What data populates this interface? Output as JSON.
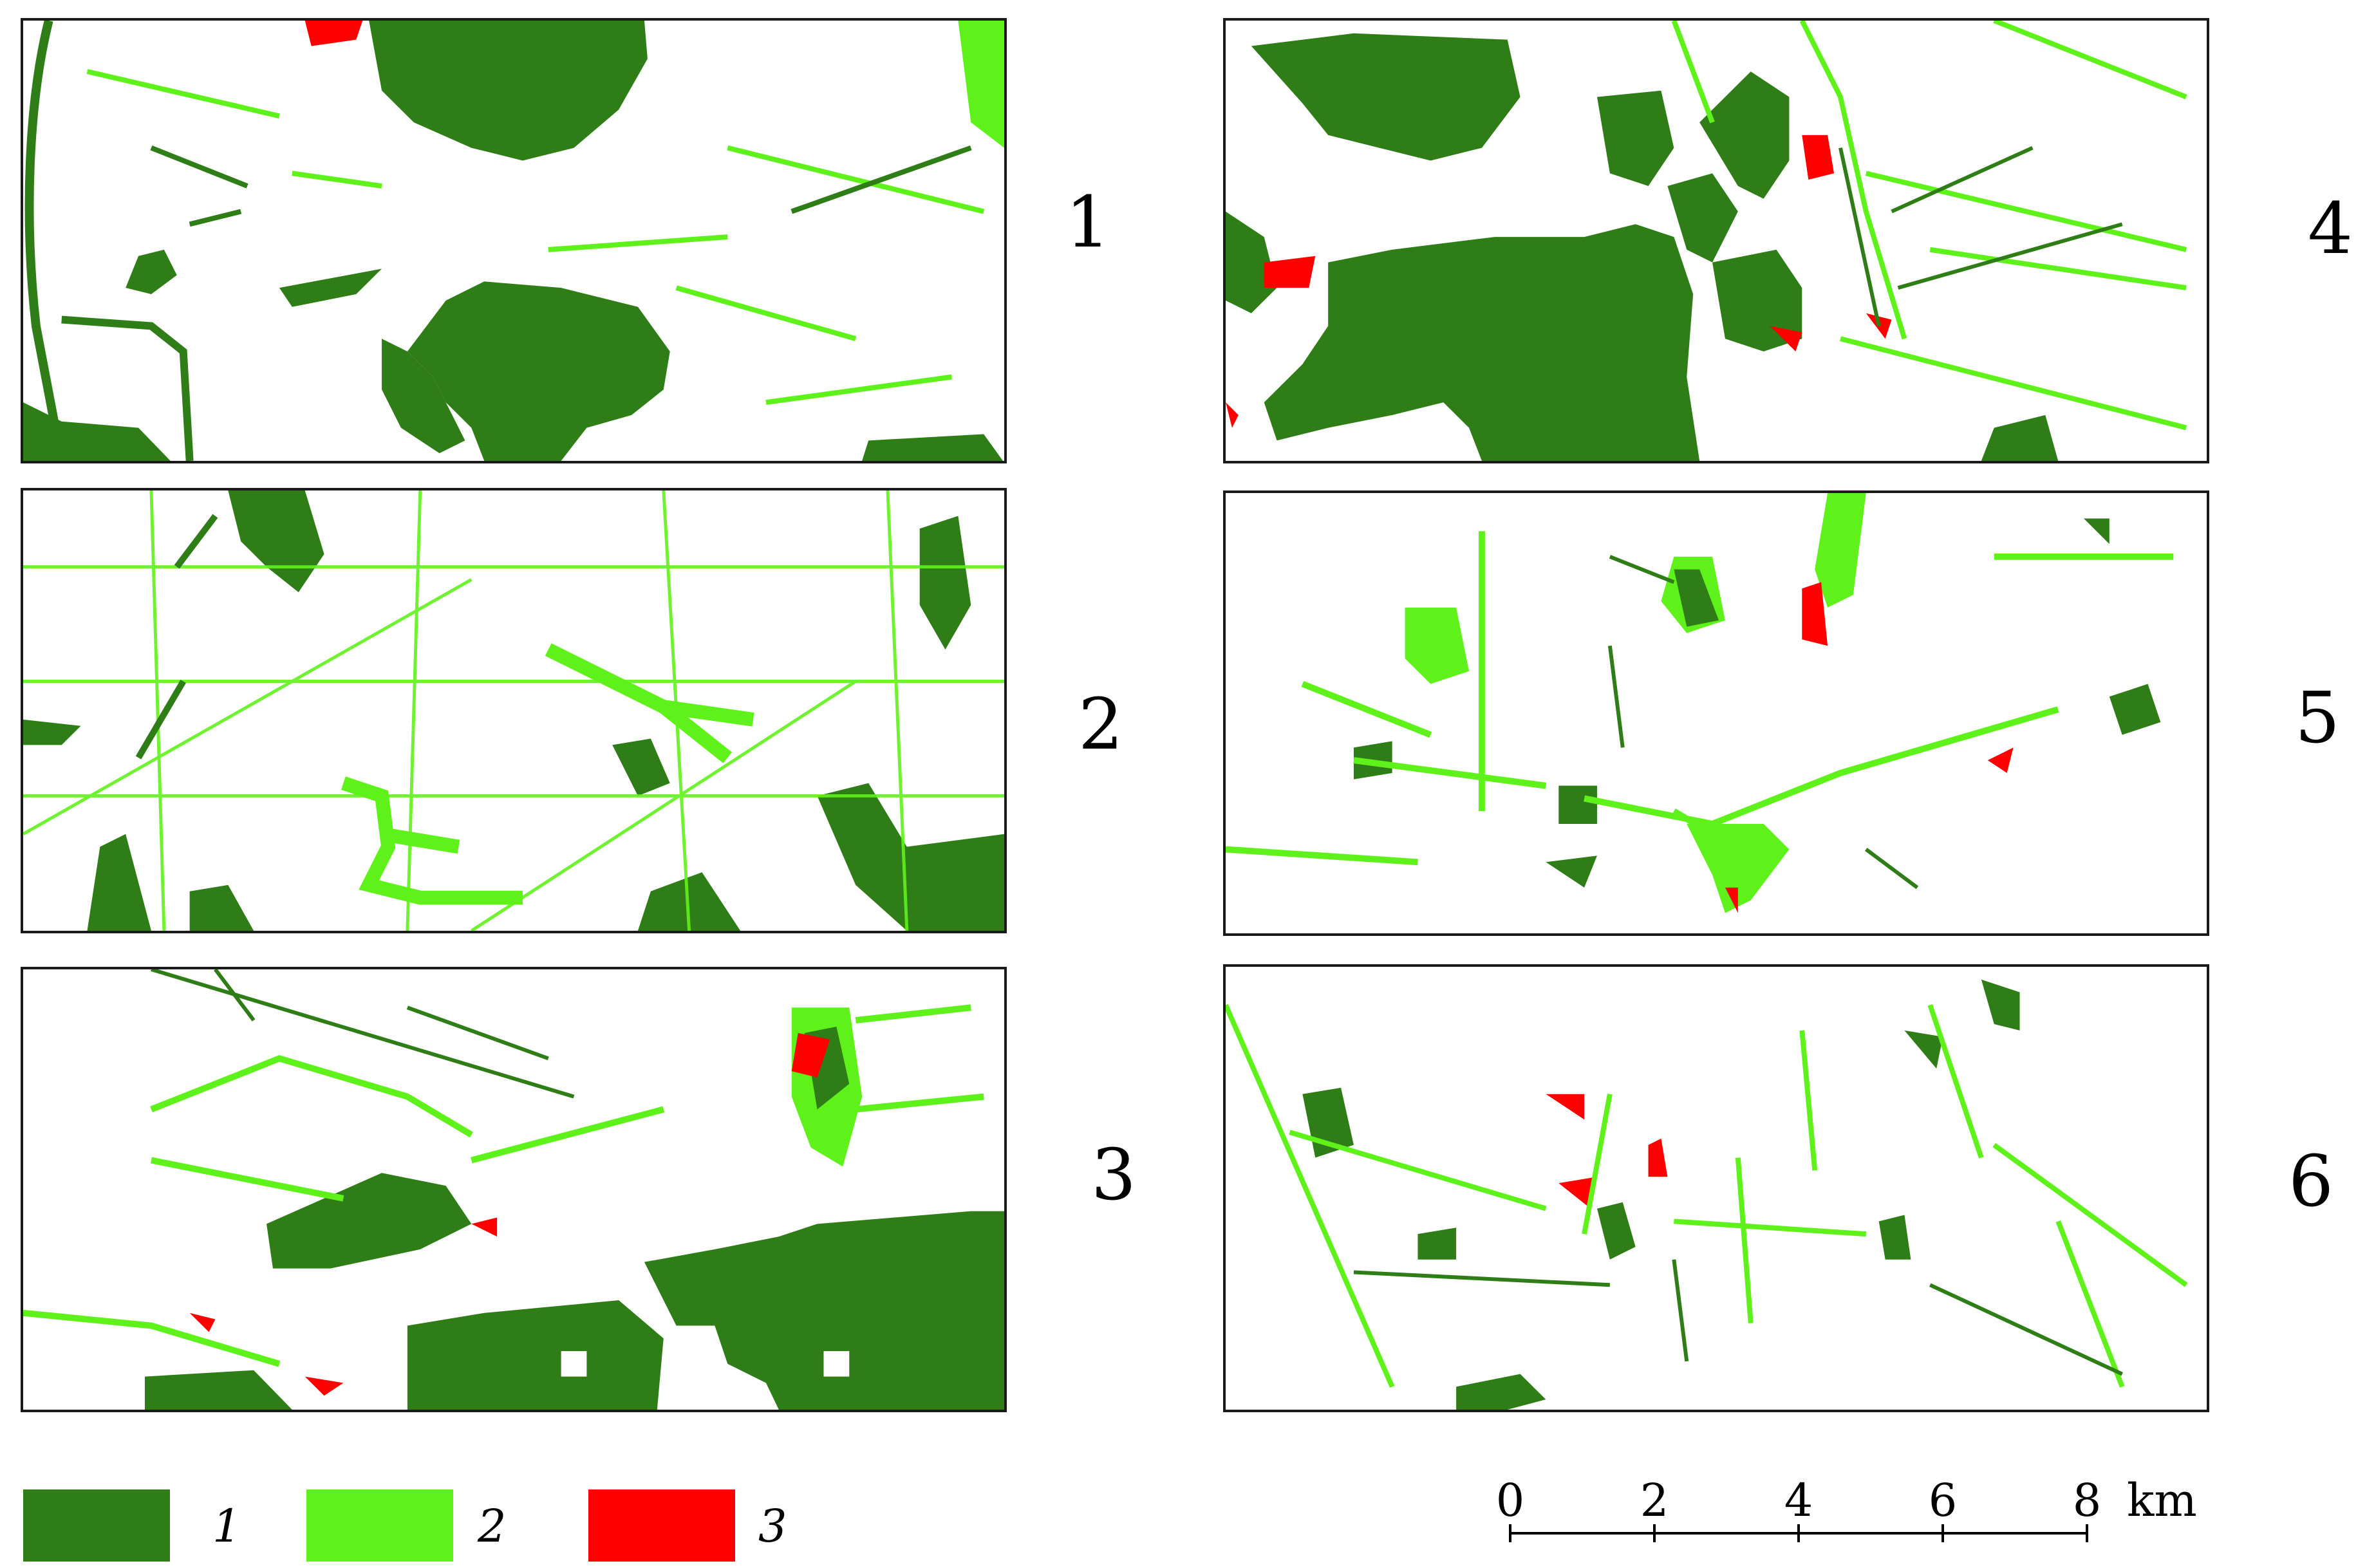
{
  "colors": {
    "class1": "#2e7d16",
    "class2": "#5ff21a",
    "class3": "#ff0000",
    "frame": "#1a1a1a"
  },
  "panels": [
    {
      "label": "1"
    },
    {
      "label": "2"
    },
    {
      "label": "3"
    },
    {
      "label": "4"
    },
    {
      "label": "5"
    },
    {
      "label": "6"
    }
  ],
  "legend": [
    {
      "label": "1",
      "color": "#2e7d16"
    },
    {
      "label": "2",
      "color": "#5ff21a"
    },
    {
      "label": "3",
      "color": "#ff0000"
    }
  ],
  "scale": {
    "ticks": [
      "0",
      "2",
      "4",
      "6",
      "8"
    ],
    "unit": "km"
  }
}
